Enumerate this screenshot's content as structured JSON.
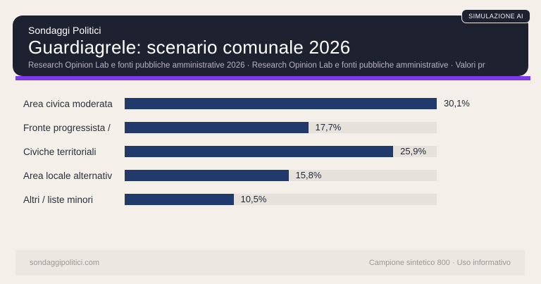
{
  "colors": {
    "page_bg": "#f4f0e9",
    "header_bg": "#1e2130",
    "accent": "#7c3aed",
    "bar_fill": "#1f3a6b",
    "bar_track": "#e6e2db",
    "header_text": "#ffffff",
    "subtitle_text": "#b5b3c2",
    "footer_text": "#9b9892"
  },
  "header": {
    "badge": "SIMULAZIONE AI",
    "brand": "Sondaggi Politici",
    "title": "Guardiagrele: scenario comunale 2026",
    "subtitle": "Research Opinion Lab e fonti pubbliche amministrative 2026 · Research Opinion Lab e fonti pubbliche amministrative · Valori pr"
  },
  "chart_data": {
    "type": "bar",
    "orientation": "horizontal",
    "title": "Guardiagrele: scenario comunale 2026",
    "categories": [
      "Area civica moderata",
      "Fronte progressista /",
      "Civiche territoriali",
      "Area locale alternativ",
      "Altri / liste minori"
    ],
    "values": [
      30.1,
      17.7,
      25.9,
      15.8,
      10.5
    ],
    "value_labels": [
      "30,1%",
      "17,7%",
      "25,9%",
      "15,8%",
      "10,5%"
    ],
    "unit": "%",
    "xlim": [
      0,
      30.1
    ],
    "grid": false,
    "legend": false
  },
  "footer": {
    "left": "sondaggipolitici.com",
    "right": "Campione sintetico 800 · Uso informativo"
  }
}
